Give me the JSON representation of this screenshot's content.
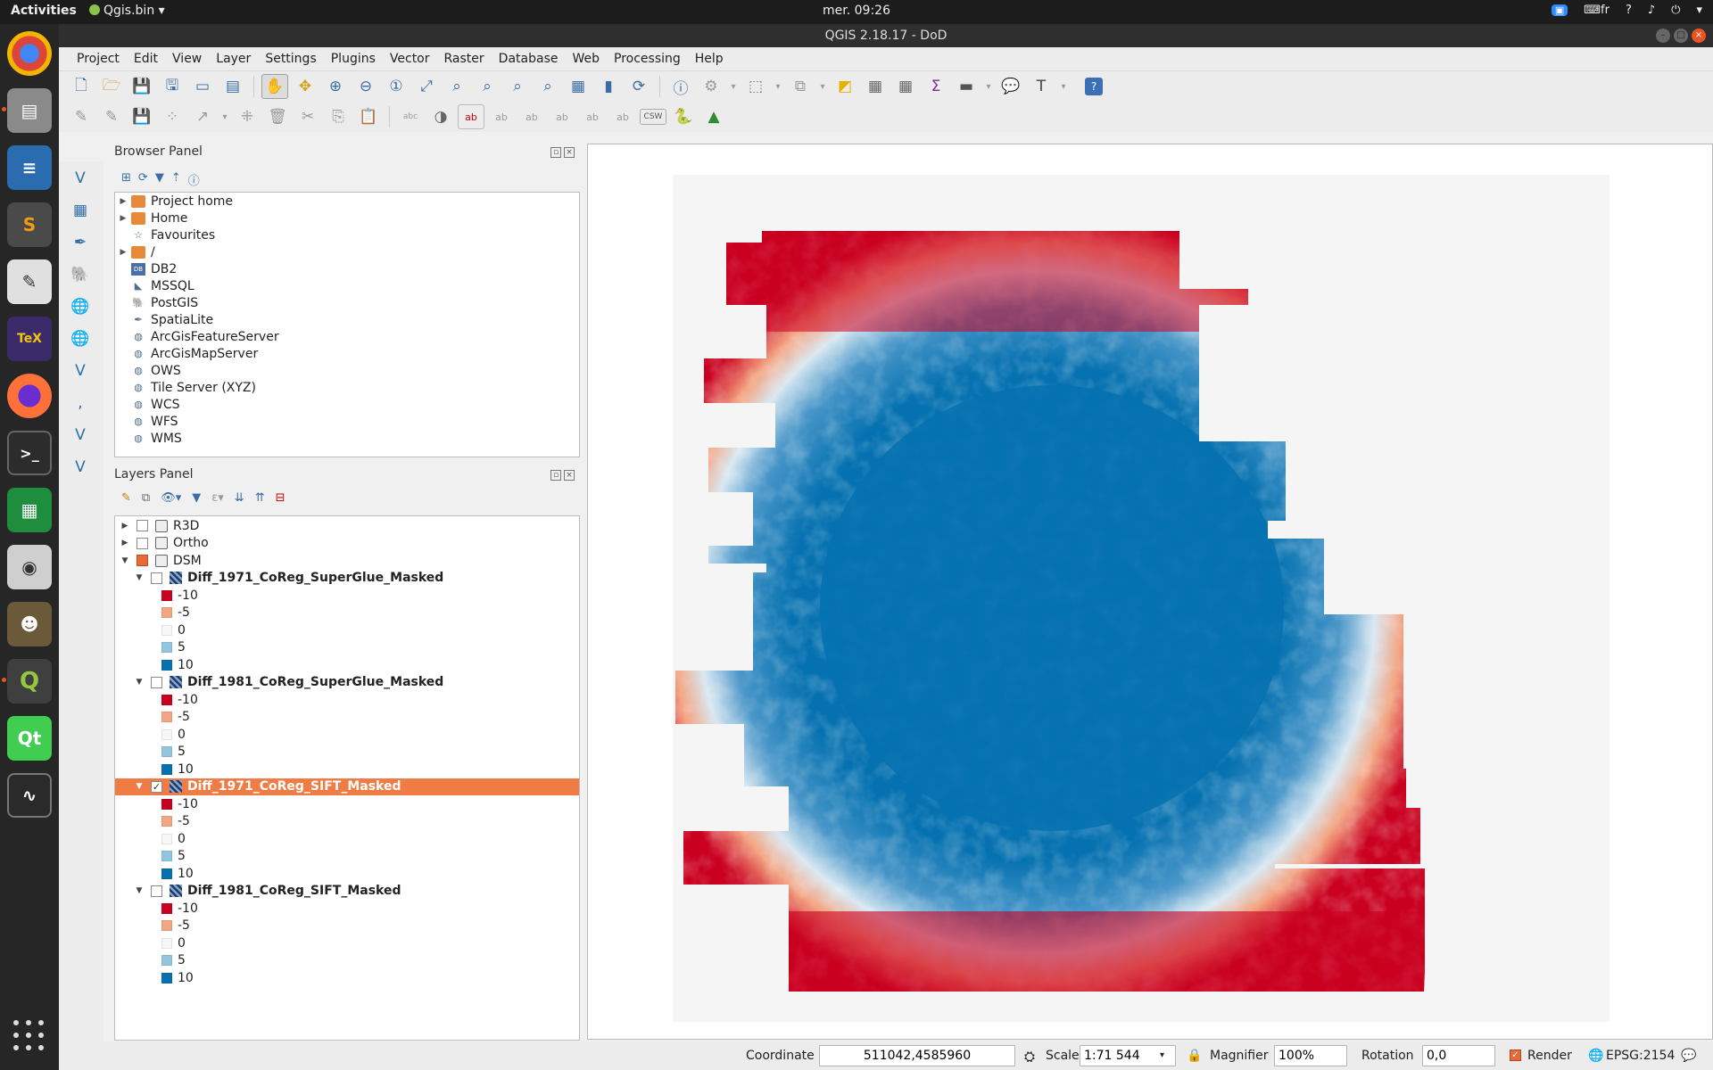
{
  "topbar": {
    "activities": "Activities",
    "app_name": "Qgis.bin",
    "clock": "mer. 09:26",
    "lang": "fr"
  },
  "window": {
    "title": "QGIS 2.18.17 - DoD"
  },
  "menubar": [
    "Project",
    "Edit",
    "View",
    "Layer",
    "Settings",
    "Plugins",
    "Vector",
    "Raster",
    "Database",
    "Web",
    "Processing",
    "Help"
  ],
  "browser_panel": {
    "title": "Browser Panel",
    "items": [
      {
        "label": "Project home",
        "icon": "folder-icon",
        "expandable": true
      },
      {
        "label": "Home",
        "icon": "folder-icon",
        "expandable": true
      },
      {
        "label": "Favourites",
        "icon": "star-icon",
        "expandable": false
      },
      {
        "label": "/",
        "icon": "folder-icon",
        "expandable": true
      },
      {
        "label": "DB2",
        "icon": "db2-icon",
        "expandable": false
      },
      {
        "label": "MSSQL",
        "icon": "mssql-icon",
        "expandable": false
      },
      {
        "label": "PostGIS",
        "icon": "postgis-icon",
        "expandable": false
      },
      {
        "label": "SpatiaLite",
        "icon": "spatialite-icon",
        "expandable": false
      },
      {
        "label": "ArcGisFeatureServer",
        "icon": "arcgis-icon",
        "expandable": false
      },
      {
        "label": "ArcGisMapServer",
        "icon": "arcgis-icon",
        "expandable": false
      },
      {
        "label": "OWS",
        "icon": "globe-icon",
        "expandable": false
      },
      {
        "label": "Tile Server (XYZ)",
        "icon": "globe-icon",
        "expandable": false
      },
      {
        "label": "WCS",
        "icon": "globe-icon",
        "expandable": false
      },
      {
        "label": "WFS",
        "icon": "globe-icon",
        "expandable": false
      },
      {
        "label": "WMS",
        "icon": "globe-icon",
        "expandable": false
      }
    ]
  },
  "layers_panel": {
    "title": "Layers Panel",
    "groups": [
      {
        "label": "R3D",
        "checked": false
      },
      {
        "label": "Ortho",
        "checked": false
      },
      {
        "label": "DSM",
        "checked": true
      }
    ],
    "layers": [
      {
        "name": "Diff_1971_CoReg_SuperGlue_Masked",
        "checked": false,
        "selected": false
      },
      {
        "name": "Diff_1981_CoReg_SuperGlue_Masked",
        "checked": false,
        "selected": false
      },
      {
        "name": "Diff_1971_CoReg_SIFT_Masked",
        "checked": true,
        "selected": true
      },
      {
        "name": "Diff_1981_CoReg_SIFT_Masked",
        "checked": false,
        "selected": false
      }
    ],
    "legend": [
      {
        "label": "-10",
        "color": "#ca0020"
      },
      {
        "label": "-5",
        "color": "#f4a582"
      },
      {
        "label": "0",
        "color": "#f7f7f7"
      },
      {
        "label": "5",
        "color": "#92c5de"
      },
      {
        "label": "10",
        "color": "#0571b0"
      }
    ]
  },
  "statusbar": {
    "coordinate_label": "Coordinate",
    "coordinate_value": "511042,4585960",
    "scale_label": "Scale",
    "scale_value": "1:71 544",
    "magnifier_label": "Magnifier",
    "magnifier_value": "100%",
    "rotation_label": "Rotation",
    "rotation_value": "0,0",
    "render_label": "Render",
    "crs": "EPSG:2154"
  },
  "colors": {
    "selection": "#f07c45",
    "diverging_red": "#ca0020",
    "diverging_blue": "#0571b0"
  }
}
